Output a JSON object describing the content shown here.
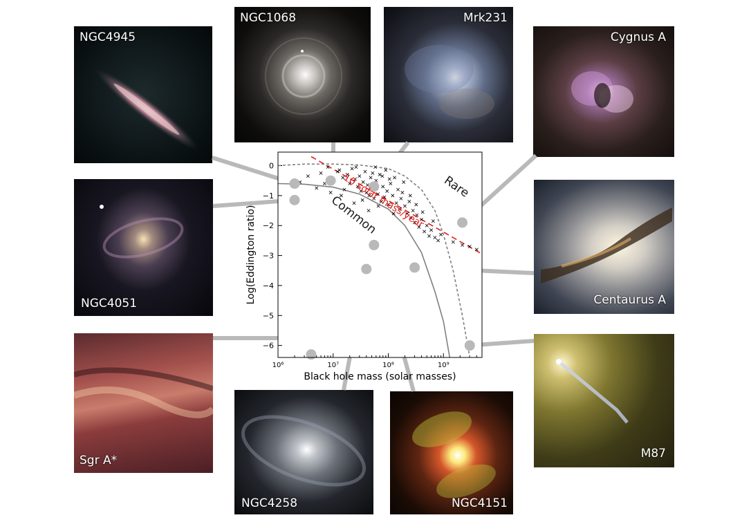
{
  "galaxies": [
    {
      "id": "ngc4945",
      "label": "NGC4945"
    },
    {
      "id": "ngc1068",
      "label": "NGC1068"
    },
    {
      "id": "mrk231",
      "label": "Mrk231"
    },
    {
      "id": "cygnusa",
      "label": "Cygnus A"
    },
    {
      "id": "ngc4051",
      "label": "NGC4051"
    },
    {
      "id": "centaurusa",
      "label": "Centaurus A"
    },
    {
      "id": "sgra",
      "label": "Sgr A*"
    },
    {
      "id": "ngc4258",
      "label": "NGC4258"
    },
    {
      "id": "ngc4151",
      "label": "NGC4151"
    },
    {
      "id": "m87",
      "label": "M87"
    }
  ],
  "chart_data": {
    "type": "scatter",
    "xlabel": "Black hole mass (solar masses)",
    "ylabel": "Log(Eddington ratio)",
    "xscale": "log",
    "xlim": [
      1000000,
      5000000000
    ],
    "ylim": [
      -6.4,
      0.45
    ],
    "x_ticks": [
      {
        "label": "10⁶",
        "value": 1000000
      },
      {
        "label": "10⁷",
        "value": 10000000
      },
      {
        "label": "10⁸",
        "value": 100000000
      },
      {
        "label": "10⁹",
        "value": 1000000000
      }
    ],
    "y_ticks": [
      {
        "label": "0",
        "value": 0
      },
      {
        "label": "−1",
        "value": -1
      },
      {
        "label": "−2",
        "value": -2
      },
      {
        "label": "−3",
        "value": -3
      },
      {
        "label": "−4",
        "value": -4
      },
      {
        "label": "−5",
        "value": -5
      },
      {
        "label": "−6",
        "value": -6
      }
    ],
    "annotations": {
      "rare": "Rare",
      "common": "Common",
      "limit_line": "10 solar mass/year"
    },
    "colors": {
      "limit_line": "#e0201b",
      "rare_curve": "#7f7f7f",
      "common_curve": "#7f7f7f",
      "points": "#000000",
      "connector": "#b9b9b9"
    },
    "points": [
      [
        8000000,
        -0.05
      ],
      [
        12000000,
        -0.2
      ],
      [
        15000000,
        -0.4
      ],
      [
        10000000,
        -0.5
      ],
      [
        18000000,
        -0.3
      ],
      [
        20000000,
        -0.6
      ],
      [
        22000000,
        -0.1
      ],
      [
        25000000,
        -0.45
      ],
      [
        28000000,
        -0.7
      ],
      [
        30000000,
        -0.35
      ],
      [
        32000000,
        -0.85
      ],
      [
        35000000,
        -0.55
      ],
      [
        38000000,
        -0.2
      ],
      [
        40000000,
        -0.9
      ],
      [
        42000000,
        -0.65
      ],
      [
        45000000,
        -1.0
      ],
      [
        48000000,
        -0.4
      ],
      [
        50000000,
        -0.75
      ],
      [
        55000000,
        -1.1
      ],
      [
        60000000,
        -0.5
      ],
      [
        65000000,
        -0.95
      ],
      [
        70000000,
        -0.3
      ],
      [
        75000000,
        -1.2
      ],
      [
        80000000,
        -0.7
      ],
      [
        85000000,
        -1.05
      ],
      [
        90000000,
        -0.15
      ],
      [
        95000000,
        -0.85
      ],
      [
        100000000,
        -1.3
      ],
      [
        110000000,
        -0.6
      ],
      [
        120000000,
        -1.0
      ],
      [
        130000000,
        -0.4
      ],
      [
        140000000,
        -1.25
      ],
      [
        150000000,
        -0.8
      ],
      [
        160000000,
        -1.45
      ],
      [
        170000000,
        -1.1
      ],
      [
        180000000,
        -0.9
      ],
      [
        200000000,
        -1.35
      ],
      [
        220000000,
        -1.6
      ],
      [
        240000000,
        -1.2
      ],
      [
        260000000,
        -1.75
      ],
      [
        280000000,
        -1.5
      ],
      [
        300000000,
        -1.9
      ],
      [
        330000000,
        -1.65
      ],
      [
        360000000,
        -2.05
      ],
      [
        400000000,
        -1.8
      ],
      [
        450000000,
        -2.2
      ],
      [
        500000000,
        -2.0
      ],
      [
        550000000,
        -2.35
      ],
      [
        600000000,
        -2.15
      ],
      [
        700000000,
        -2.4
      ],
      [
        2500000,
        -0.55
      ],
      [
        3500000,
        -0.35
      ],
      [
        5000000,
        -0.75
      ],
      [
        6000000,
        -0.25
      ],
      [
        7000000,
        -0.6
      ],
      [
        9000000,
        -0.9
      ],
      [
        13000000,
        -0.15
      ],
      [
        16000000,
        -0.8
      ],
      [
        26000000,
        -0.05
      ],
      [
        34000000,
        -1.15
      ],
      [
        52000000,
        -0.25
      ],
      [
        66000000,
        -1.35
      ],
      [
        105000000,
        -0.45
      ],
      [
        125000000,
        -1.6
      ],
      [
        190000000,
        -0.55
      ],
      [
        250000000,
        -1.0
      ],
      [
        320000000,
        -1.3
      ],
      [
        420000000,
        -1.55
      ],
      [
        650000000,
        -1.85
      ],
      [
        800000000,
        -2.5
      ],
      [
        3000000000,
        -2.7
      ],
      [
        4000000000,
        -2.8
      ],
      [
        1500000000,
        -2.55
      ],
      [
        2200000000,
        -2.65
      ],
      [
        900000000,
        -2.3
      ],
      [
        14000000,
        -1.0
      ],
      [
        24000000,
        -1.25
      ],
      [
        44000000,
        -1.5
      ],
      [
        58000000,
        -0.05
      ],
      [
        78000000,
        -0.35
      ]
    ],
    "limit_line": [
      [
        4000000,
        0.3
      ],
      [
        5000000000,
        -2.95
      ]
    ],
    "rare_curve": [
      [
        1000000,
        0.0
      ],
      [
        3000000,
        0.05
      ],
      [
        10000000,
        0.05
      ],
      [
        30000000,
        0.02
      ],
      [
        100000000,
        -0.1
      ],
      [
        200000000,
        -0.35
      ],
      [
        400000000,
        -0.8
      ],
      [
        700000000,
        -1.5
      ],
      [
        1000000000,
        -2.3
      ],
      [
        1500000000,
        -3.5
      ],
      [
        2200000000,
        -5.0
      ],
      [
        3000000000,
        -6.4
      ]
    ],
    "common_curve": [
      [
        1000000,
        -0.6
      ],
      [
        3000000,
        -0.62
      ],
      [
        10000000,
        -0.72
      ],
      [
        30000000,
        -0.95
      ],
      [
        100000000,
        -1.45
      ],
      [
        200000000,
        -2.0
      ],
      [
        400000000,
        -2.9
      ],
      [
        700000000,
        -4.2
      ],
      [
        1000000000,
        -5.2
      ],
      [
        1300000000,
        -6.4
      ]
    ],
    "connector_dots": [
      {
        "galaxy": "ngc4945",
        "x": 2000000,
        "y": -0.6
      },
      {
        "galaxy": "ngc1068",
        "x": 9000000,
        "y": -0.5
      },
      {
        "galaxy": "mrk231",
        "x": 55000000,
        "y": -0.7
      },
      {
        "galaxy": "cygnusa",
        "x": 2200000000,
        "y": -1.9
      },
      {
        "galaxy": "ngc4051",
        "x": 2000000,
        "y": -1.15
      },
      {
        "galaxy": "centaurusa",
        "x": 300000000,
        "y": -3.4
      },
      {
        "galaxy": "sgra",
        "x": 4000000,
        "y": -6.3
      },
      {
        "galaxy": "ngc4258",
        "x": 40000000,
        "y": -3.45
      },
      {
        "galaxy": "ngc4151",
        "x": 55000000,
        "y": -2.65
      },
      {
        "galaxy": "m87",
        "x": 3000000000,
        "y": -6.0
      }
    ]
  }
}
